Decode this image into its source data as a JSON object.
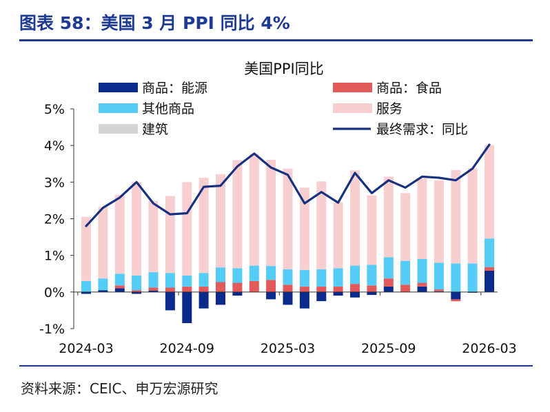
{
  "figure_title": "图表 58：美国 3 月 PPI 同比 4%",
  "source": "资料来源：CEIC、申万宏源研究",
  "colors": {
    "energy": "#0a2a8c",
    "food": "#e35a5a",
    "core_goods": "#55ccf5",
    "services": "#f8cfd0",
    "construction": "#d4d4d4",
    "final_demand": "#16317f",
    "accent": "#1f3a93"
  },
  "chart_data": {
    "type": "bar",
    "title": "美国PPI同比",
    "xlabel": "",
    "ylabel": "",
    "ylim": [
      -1,
      5
    ],
    "yticks": [
      -1,
      0,
      1,
      2,
      3,
      4,
      5
    ],
    "ytick_labels": [
      "-1%",
      "0%",
      "1%",
      "2%",
      "3%",
      "4%",
      "5%"
    ],
    "grid": false,
    "legend_position": "top",
    "stacked": true,
    "categories": [
      "2024-03",
      "2024-04",
      "2024-05",
      "2024-06",
      "2024-07",
      "2024-08",
      "2024-09",
      "2024-10",
      "2024-11",
      "2024-12",
      "2025-01",
      "2025-02",
      "2025-03",
      "2025-04",
      "2025-05",
      "2025-06",
      "2025-07",
      "2025-08",
      "2025-09",
      "2025-10",
      "2025-11",
      "2025-12",
      "2026-01",
      "2026-02",
      "2026-03"
    ],
    "xtick_labels": [
      "2024-03",
      "2024-09",
      "2025-03",
      "2025-09",
      "2026-03"
    ],
    "series": [
      {
        "name": "商品：能源",
        "key": "energy",
        "kind": "bar",
        "values": [
          -0.05,
          0.05,
          0.1,
          -0.05,
          0.04,
          -0.5,
          -0.85,
          -0.45,
          -0.35,
          -0.1,
          0.0,
          -0.2,
          -0.35,
          -0.45,
          -0.25,
          -0.1,
          -0.15,
          -0.08,
          0.15,
          0.0,
          0.15,
          0.02,
          -0.2,
          -0.02,
          0.58
        ]
      },
      {
        "name": "商品：食品",
        "key": "food",
        "kind": "bar",
        "values": [
          0.0,
          0.0,
          0.08,
          0.05,
          0.08,
          0.12,
          0.15,
          0.15,
          0.27,
          0.25,
          0.3,
          0.33,
          0.2,
          0.15,
          0.15,
          0.15,
          0.22,
          0.18,
          0.22,
          0.2,
          0.1,
          0.05,
          -0.05,
          0.0,
          0.1
        ]
      },
      {
        "name": "其他商品",
        "key": "core_goods",
        "kind": "bar",
        "values": [
          0.3,
          0.32,
          0.32,
          0.4,
          0.42,
          0.4,
          0.3,
          0.37,
          0.4,
          0.4,
          0.42,
          0.38,
          0.42,
          0.45,
          0.47,
          0.5,
          0.5,
          0.56,
          0.58,
          0.65,
          0.65,
          0.73,
          0.78,
          0.78,
          0.78
        ]
      },
      {
        "name": "服务",
        "key": "services",
        "kind": "bar",
        "values": [
          1.75,
          1.95,
          2.15,
          2.55,
          1.95,
          2.1,
          2.55,
          2.6,
          2.55,
          2.95,
          3.05,
          2.9,
          2.75,
          2.25,
          2.4,
          1.8,
          2.6,
          1.9,
          2.2,
          1.85,
          2.2,
          2.25,
          2.55,
          2.6,
          2.55
        ]
      },
      {
        "name": "建筑",
        "key": "construction",
        "kind": "bar",
        "values": [
          0.0,
          0.0,
          0.0,
          0.0,
          0.0,
          0.0,
          0.0,
          0.0,
          0.0,
          0.0,
          0.0,
          0.0,
          0.0,
          0.0,
          0.0,
          0.0,
          0.0,
          0.0,
          0.0,
          0.0,
          0.0,
          0.0,
          0.0,
          0.0,
          0.0
        ]
      },
      {
        "name": "最终需求：同比",
        "key": "final_demand",
        "kind": "line",
        "values": [
          1.8,
          2.3,
          2.58,
          3.0,
          2.42,
          2.12,
          2.15,
          2.87,
          2.9,
          3.43,
          3.78,
          3.4,
          3.2,
          2.42,
          2.73,
          2.44,
          3.25,
          2.7,
          3.05,
          2.85,
          3.15,
          3.12,
          3.05,
          3.37,
          4.02
        ]
      }
    ]
  }
}
